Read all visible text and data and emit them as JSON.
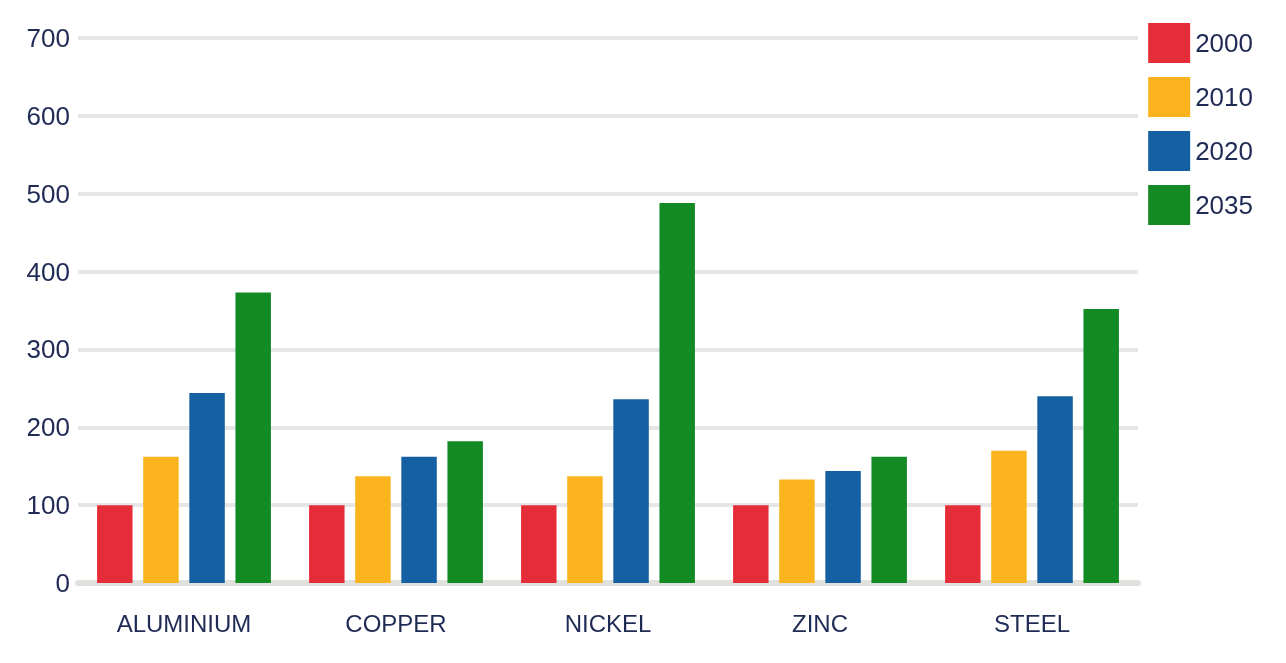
{
  "chart_data": {
    "type": "bar",
    "categories": [
      "ALUMINIUM",
      "COPPER",
      "NICKEL",
      "ZINC",
      "STEEL"
    ],
    "series": [
      {
        "name": "2000",
        "color": "#e52d3a",
        "values": [
          100,
          100,
          100,
          100,
          100
        ]
      },
      {
        "name": "2010",
        "color": "#fbb41e",
        "values": [
          162,
          137,
          137,
          133,
          170
        ]
      },
      {
        "name": "2020",
        "color": "#1560a2",
        "values": [
          244,
          162,
          236,
          144,
          240
        ]
      },
      {
        "name": "2035",
        "color": "#138a24",
        "values": [
          373,
          182,
          488,
          162,
          352
        ]
      }
    ],
    "ylim": [
      0,
      700
    ],
    "yticks": [
      0,
      100,
      200,
      300,
      400,
      500,
      600,
      700
    ],
    "grid": "y",
    "legend": "top right"
  }
}
